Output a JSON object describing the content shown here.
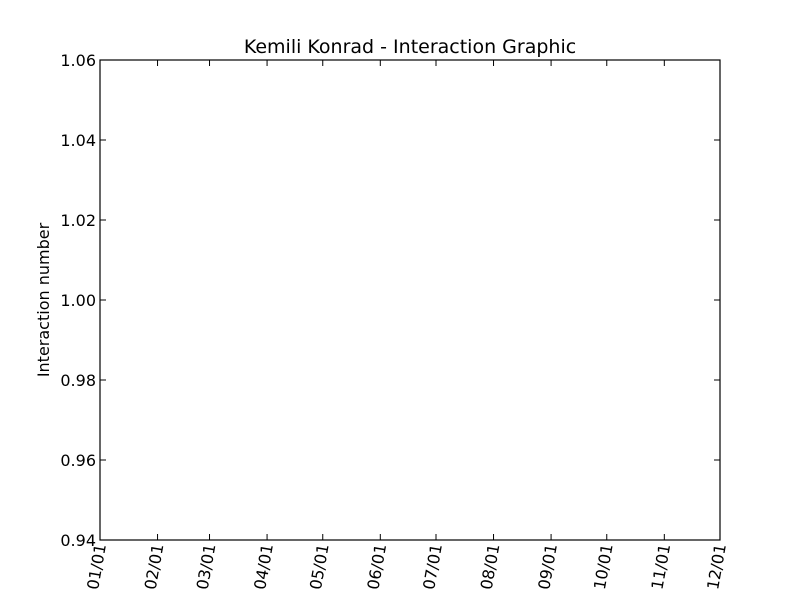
{
  "chart_data": {
    "type": "line",
    "title": "Kemili Konrad - Interaction Graphic",
    "xlabel": "",
    "ylabel": "Interaction number",
    "x_tick_labels": [
      "01/01",
      "02/01",
      "03/01",
      "04/01",
      "05/01",
      "06/01",
      "07/01",
      "08/01",
      "09/01",
      "10/01",
      "11/01",
      "12/01"
    ],
    "x_tick_values": [
      "2014-01-01",
      "2014-02-01",
      "2014-03-01",
      "2014-04-01",
      "2014-05-01",
      "2014-06-01",
      "2014-07-01",
      "2014-08-01",
      "2014-09-01",
      "2014-10-01",
      "2014-11-01",
      "2014-12-01"
    ],
    "xlim": [
      "2014-01-01",
      "2014-12-01"
    ],
    "y_tick_labels": [
      "0.94",
      "0.96",
      "0.98",
      "1.00",
      "1.02",
      "1.04",
      "1.06"
    ],
    "y_tick_values": [
      0.94,
      0.96,
      0.98,
      1.0,
      1.02,
      1.04,
      1.06
    ],
    "ylim": [
      0.94,
      1.06
    ],
    "grid": false,
    "series": []
  }
}
